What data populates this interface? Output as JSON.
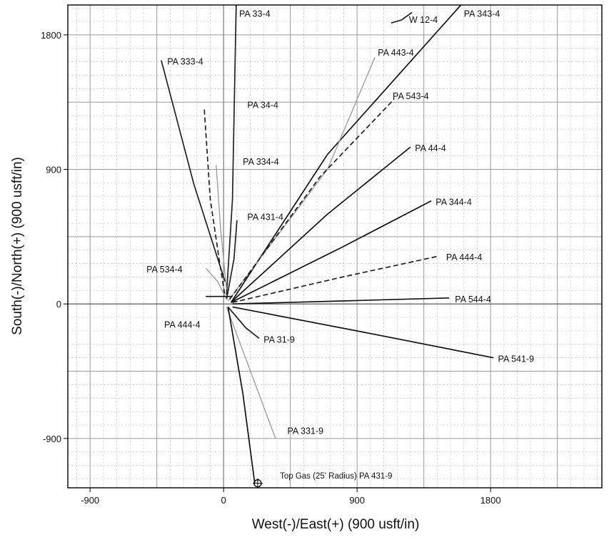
{
  "chart_data": {
    "type": "line",
    "xlabel": "West(-)/East(+) (900 usft/in)",
    "ylabel": "South(-)/North(+) (900 usft/in)",
    "xlim": [
      -1050,
      2550
    ],
    "ylim": [
      -1230,
      2000
    ],
    "x_ticks": [
      -900,
      0,
      900,
      1800
    ],
    "y_ticks": [
      -900,
      0,
      900,
      1800
    ],
    "grid": true,
    "series": [
      {
        "name": "PA 33-4",
        "style": "solid",
        "color": "#222222",
        "points": [
          [
            20,
            60
          ],
          [
            60,
            700
          ],
          [
            85,
            2000
          ]
        ]
      },
      {
        "name": "PA 343-4",
        "style": "solid",
        "color": "#111111",
        "points": [
          [
            50,
            10
          ],
          [
            700,
            1000
          ],
          [
            1600,
            2000
          ]
        ]
      },
      {
        "name": "W 12-4",
        "style": "solid",
        "color": "#222222",
        "points": [
          [
            1130,
            1880
          ],
          [
            1200,
            1900
          ],
          [
            1270,
            1950
          ]
        ]
      },
      {
        "name": "PA 443-4",
        "style": "solid",
        "color": "#999999",
        "points": [
          [
            30,
            20
          ],
          [
            700,
            900
          ],
          [
            1020,
            1650
          ]
        ]
      },
      {
        "name": "PA 333-4",
        "style": "solid",
        "color": "#222222",
        "points": [
          [
            -420,
            1630
          ],
          [
            -200,
            800
          ],
          [
            10,
            150
          ]
        ]
      },
      {
        "name": "PA 543-4",
        "style": "dashed",
        "color": "#222222",
        "points": [
          [
            40,
            30
          ],
          [
            650,
            850
          ],
          [
            1150,
            1370
          ]
        ]
      },
      {
        "name": "PA 34-4",
        "style": "dashed",
        "color": "#222222",
        "points": [
          [
            -130,
            1300
          ],
          [
            -90,
            700
          ],
          [
            -30,
            300
          ],
          [
            10,
            50
          ]
        ]
      },
      {
        "name": "PA 44-4",
        "style": "solid",
        "color": "#111111",
        "points": [
          [
            60,
            20
          ],
          [
            700,
            600
          ],
          [
            1260,
            1050
          ]
        ]
      },
      {
        "name": "PA 334-4",
        "style": "solid",
        "color": "#999999",
        "points": [
          [
            -50,
            930
          ],
          [
            -20,
            500
          ],
          [
            20,
            100
          ]
        ]
      },
      {
        "name": "PA 344-4",
        "style": "solid",
        "color": "#111111",
        "points": [
          [
            50,
            10
          ],
          [
            800,
            380
          ],
          [
            1400,
            690
          ]
        ]
      },
      {
        "name": "PA 431-4",
        "style": "solid",
        "color": "#222222",
        "points": [
          [
            20,
            30
          ],
          [
            70,
            300
          ],
          [
            90,
            560
          ]
        ]
      },
      {
        "name": "PA 444-4",
        "style": "dashed",
        "color": "#222222",
        "points": [
          [
            60,
            10
          ],
          [
            800,
            180
          ],
          [
            1450,
            320
          ]
        ]
      },
      {
        "name": "PA 534-4",
        "style": "solid",
        "color": "#999999",
        "points": [
          [
            -120,
            240
          ],
          [
            -40,
            150
          ],
          [
            20,
            30
          ]
        ]
      },
      {
        "name": "PA 544-4",
        "style": "solid",
        "color": "#111111",
        "points": [
          [
            60,
            0
          ],
          [
            800,
            20
          ],
          [
            1520,
            40
          ]
        ]
      },
      {
        "name": "PA 31-9",
        "style": "solid",
        "color": "#222222",
        "points": [
          [
            30,
            -20
          ],
          [
            150,
            -160
          ],
          [
            240,
            -230
          ]
        ]
      },
      {
        "name": "PA 541-9",
        "style": "solid",
        "color": "#111111",
        "points": [
          [
            60,
            -20
          ],
          [
            1000,
            -200
          ],
          [
            1820,
            -360
          ]
        ]
      },
      {
        "name": "PA 331-9",
        "style": "solid",
        "color": "#999999",
        "points": [
          [
            20,
            -20
          ],
          [
            200,
            -500
          ],
          [
            350,
            -900
          ]
        ]
      },
      {
        "name": "PA 431-9",
        "style": "solid",
        "color": "#111111",
        "points": [
          [
            30,
            -20
          ],
          [
            130,
            -600
          ],
          [
            210,
            -1200
          ]
        ]
      },
      {
        "name": "",
        "style": "solid",
        "color": "#111111",
        "points": [
          [
            -120,
            50
          ],
          [
            60,
            50
          ]
        ]
      }
    ],
    "labels": [
      {
        "text": "PA 33-4",
        "x": 105,
        "y": 1940
      },
      {
        "text": "PA 343-4",
        "x": 1620,
        "y": 1940
      },
      {
        "text": "W 12-4",
        "x": 1250,
        "y": 1900
      },
      {
        "text": "PA 443-4",
        "x": 1040,
        "y": 1680
      },
      {
        "text": "PA 333-4",
        "x": -380,
        "y": 1620
      },
      {
        "text": "PA 543-4",
        "x": 1140,
        "y": 1390
      },
      {
        "text": "PA 34-4",
        "x": 160,
        "y": 1330
      },
      {
        "text": "PA 44-4",
        "x": 1290,
        "y": 1040
      },
      {
        "text": "PA 334-4",
        "x": 130,
        "y": 950
      },
      {
        "text": "PA 344-4",
        "x": 1430,
        "y": 680
      },
      {
        "text": "PA 431-4",
        "x": 160,
        "y": 580
      },
      {
        "text": "PA 444-4",
        "x": 1500,
        "y": 310
      },
      {
        "text": "PA 534-4",
        "x": -520,
        "y": 230
      },
      {
        "text": "PA 544-4",
        "x": 1560,
        "y": 30
      },
      {
        "text": "PA 444-4",
        "x": -400,
        "y": -140
      },
      {
        "text": "PA 31-9",
        "x": 270,
        "y": -240
      },
      {
        "text": "PA 541-9",
        "x": 1850,
        "y": -370
      },
      {
        "text": "PA 331-9",
        "x": 430,
        "y": -850
      },
      {
        "text": "Top Gas (25' Radius) PA 431-9",
        "x": 380,
        "y": -1150
      }
    ],
    "marker": {
      "name": "target-circle",
      "x": 230,
      "y": -1200
    }
  }
}
